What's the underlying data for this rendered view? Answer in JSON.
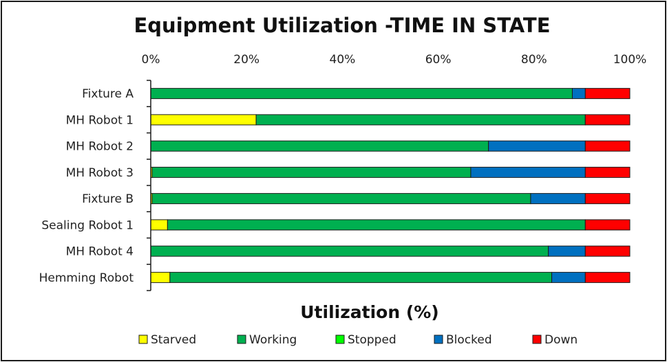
{
  "chart_data": {
    "type": "bar",
    "orientation": "horizontal",
    "stacked": true,
    "title": "Equipment Utilization -TIME IN STATE",
    "xlabel": "Utilization (%)",
    "ylabel": "",
    "xlim": [
      0,
      100
    ],
    "x_ticks": [
      "0%",
      "20%",
      "40%",
      "60%",
      "80%",
      "100%"
    ],
    "x_axis_position": "top",
    "legend_position": "bottom",
    "grid": false,
    "categories": [
      "Fixture A",
      "MH Robot 1",
      "MH Robot 2",
      "MH Robot 3",
      "Fixture B",
      "Sealing Robot 1",
      "MH Robot 4",
      "Hemming Robot"
    ],
    "series": [
      {
        "name": "Starved",
        "color": "#ffff00",
        "values": [
          0,
          22,
          0,
          0.3,
          0.3,
          3.5,
          0,
          4
        ]
      },
      {
        "name": "Working",
        "color": "#00b050",
        "values": [
          88,
          68.7,
          70.5,
          66.5,
          79,
          87.2,
          83,
          79.7
        ]
      },
      {
        "name": "Stopped",
        "color": "#00ff00",
        "values": [
          0,
          0,
          0,
          0,
          0,
          0,
          0,
          0
        ]
      },
      {
        "name": "Blocked",
        "color": "#0070c0",
        "values": [
          2.7,
          0,
          20.2,
          23.9,
          11.4,
          0,
          7.7,
          7
        ]
      },
      {
        "name": "Down",
        "color": "#ff0000",
        "values": [
          9.3,
          9.3,
          9.3,
          9.3,
          9.3,
          9.3,
          9.3,
          9.3
        ]
      }
    ]
  }
}
